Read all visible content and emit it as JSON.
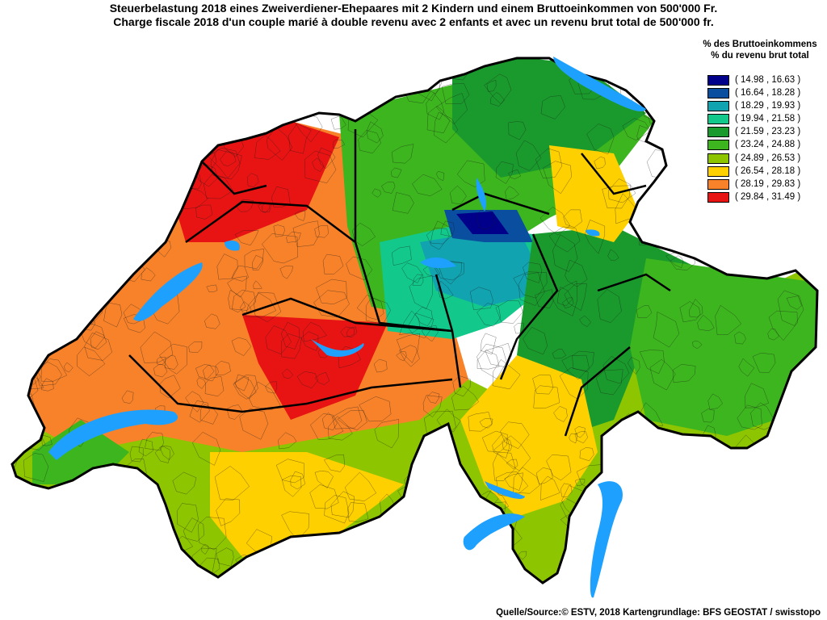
{
  "title": {
    "line1": "Steuerbelastung 2018 eines Zweiverdiener-Ehepaares mit 2 Kindern und einem Bruttoeinkommen von 500'000 Fr.",
    "line2": "Charge fiscale 2018 d'un couple marié à double revenu avec 2 enfants et avec un revenu brut total de 500'000 fr."
  },
  "legend": {
    "title_de": "% des Bruttoeinkommens",
    "title_fr": "% du revenu brut total",
    "classes": [
      {
        "label": "( 14.98 , 16.63 )",
        "color": "#00008b"
      },
      {
        "label": "( 16.64 , 18.28 )",
        "color": "#0a4ea0"
      },
      {
        "label": "( 18.29 , 19.93 )",
        "color": "#11a3b0"
      },
      {
        "label": "( 19.94 , 21.58 )",
        "color": "#12c88a"
      },
      {
        "label": "( 21.59 , 23.23 )",
        "color": "#1a9a2c"
      },
      {
        "label": "( 23.24 , 24.88 )",
        "color": "#3db51e"
      },
      {
        "label": "( 24.89 , 26.53 )",
        "color": "#8dc500"
      },
      {
        "label": "( 26.54 , 28.18 )",
        "color": "#ffd000"
      },
      {
        "label": "( 28.19 , 29.83 )",
        "color": "#f7822a"
      },
      {
        "label": "( 29.84 , 31.49 )",
        "color": "#e81414"
      }
    ]
  },
  "lake_color": "#1ea0ff",
  "source": "Quelle/Source:© ESTV, 2018 Kartengrundlage: BFS GEOSTAT / swisstopo"
}
